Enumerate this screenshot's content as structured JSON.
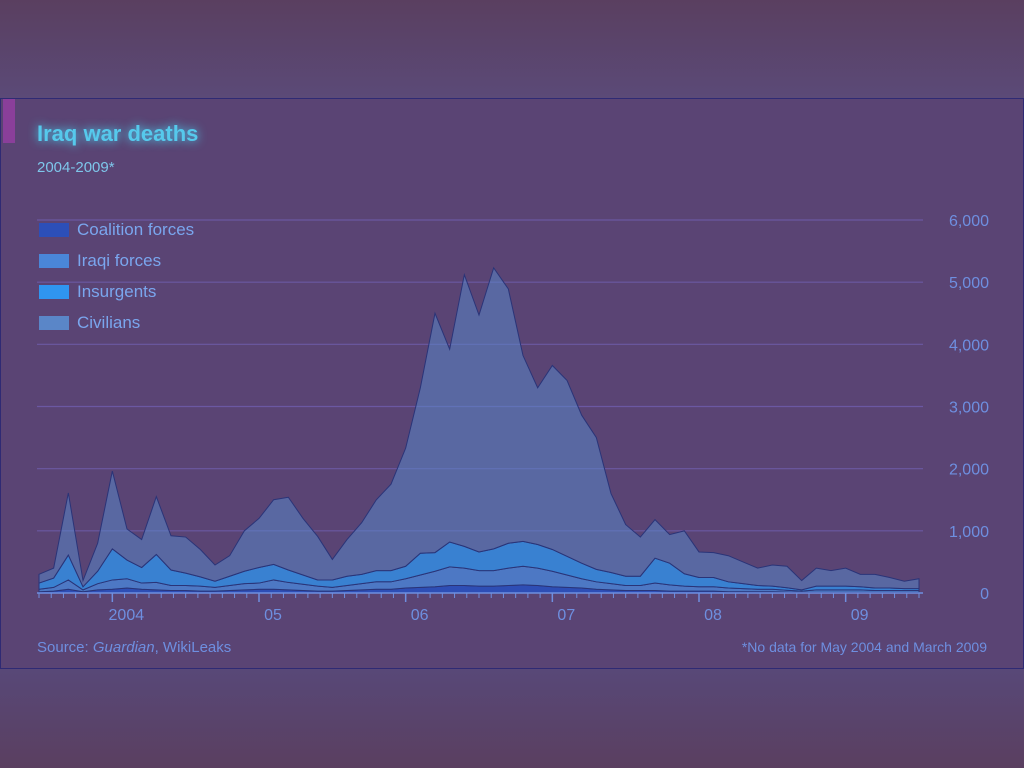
{
  "header": {
    "title": "Iraq war deaths",
    "subtitle": "2004-2009*"
  },
  "footer": {
    "source_prefix": "Source: ",
    "source_italic": "Guardian",
    "source_suffix": ", WikiLeaks",
    "note": "*No data for May 2004 and March 2009"
  },
  "colors": {
    "coalition": "#2c4fb8",
    "iraqi": "#4a86d8",
    "insurgents": "#2f95f0",
    "civilians": "#5a86c8",
    "grid": "#7a6ac8",
    "axis": "#6e8fe0",
    "outline": "#2a3478"
  },
  "chart_data": {
    "type": "area",
    "title": "Iraq war deaths",
    "subtitle": "2004-2009*",
    "stacked": true,
    "y_axis_position": "right",
    "ylim": [
      0,
      6000
    ],
    "y_ticks": [
      "6,000",
      "5,000",
      "4,000",
      "3,000",
      "2,000",
      "1,000",
      "0"
    ],
    "x_tick_labels": [
      "2004",
      "05",
      "06",
      "07",
      "08",
      "09"
    ],
    "x_tick_positions": [
      2004.0,
      2005.0,
      2006.0,
      2007.0,
      2008.0,
      2009.0
    ],
    "grid": true,
    "legend_position": "top-left",
    "x": [
      2003.5,
      2003.6,
      2003.7,
      2003.8,
      2003.9,
      2004.0,
      2004.1,
      2004.2,
      2004.3,
      2004.4,
      2004.5,
      2004.6,
      2004.7,
      2004.8,
      2004.9,
      2005.0,
      2005.1,
      2005.2,
      2005.3,
      2005.4,
      2005.5,
      2005.6,
      2005.7,
      2005.8,
      2005.9,
      2006.0,
      2006.1,
      2006.2,
      2006.3,
      2006.4,
      2006.5,
      2006.6,
      2006.7,
      2006.8,
      2006.9,
      2007.0,
      2007.1,
      2007.2,
      2007.3,
      2007.4,
      2007.5,
      2007.6,
      2007.7,
      2007.8,
      2007.9,
      2008.0,
      2008.1,
      2008.2,
      2008.3,
      2008.4,
      2008.5,
      2008.6,
      2008.7,
      2008.8,
      2008.9,
      2009.0,
      2009.1,
      2009.2,
      2009.3,
      2009.4,
      2009.5
    ],
    "series": [
      {
        "name": "Coalition forces",
        "values": [
          20,
          30,
          60,
          20,
          50,
          60,
          80,
          60,
          50,
          40,
          40,
          30,
          30,
          40,
          50,
          60,
          60,
          50,
          40,
          30,
          30,
          40,
          50,
          60,
          60,
          80,
          90,
          100,
          120,
          120,
          110,
          110,
          120,
          130,
          120,
          100,
          90,
          80,
          60,
          50,
          40,
          40,
          40,
          30,
          30,
          30,
          30,
          20,
          20,
          20,
          20,
          15,
          10,
          10,
          10,
          10,
          10,
          10,
          10,
          10,
          10
        ]
      },
      {
        "name": "Iraqi forces",
        "values": [
          40,
          60,
          150,
          30,
          100,
          150,
          150,
          100,
          120,
          80,
          80,
          80,
          60,
          80,
          100,
          100,
          150,
          120,
          100,
          80,
          60,
          80,
          100,
          120,
          120,
          150,
          200,
          250,
          300,
          280,
          250,
          250,
          280,
          300,
          280,
          250,
          200,
          150,
          120,
          100,
          80,
          80,
          120,
          100,
          80,
          70,
          70,
          60,
          50,
          40,
          40,
          30,
          20,
          40,
          40,
          40,
          40,
          30,
          30,
          30,
          30
        ]
      },
      {
        "name": "Insurgents",
        "values": [
          100,
          150,
          400,
          50,
          200,
          500,
          300,
          250,
          450,
          250,
          200,
          150,
          100,
          150,
          200,
          250,
          250,
          200,
          150,
          100,
          120,
          150,
          150,
          180,
          180,
          200,
          350,
          300,
          400,
          350,
          300,
          350,
          400,
          400,
          380,
          350,
          300,
          250,
          200,
          180,
          150,
          150,
          400,
          350,
          200,
          150,
          150,
          100,
          80,
          60,
          50,
          40,
          20,
          60,
          60,
          60,
          50,
          40,
          40,
          30,
          30
        ]
      },
      {
        "name": "Civilians",
        "values": [
          140,
          160,
          1000,
          100,
          450,
          1250,
          500,
          450,
          930,
          550,
          580,
          440,
          260,
          330,
          650,
          790,
          1040,
          1170,
          910,
          700,
          330,
          590,
          830,
          1140,
          1390,
          1900,
          2660,
          3850,
          3100,
          4370,
          3810,
          4520,
          4090,
          2990,
          2520,
          2960,
          2830,
          2380,
          2120,
          1270,
          830,
          630,
          620,
          460,
          690,
          410,
          400,
          420,
          350,
          280,
          340,
          345,
          150,
          290,
          250,
          290,
          200,
          220,
          170,
          120,
          160
        ]
      }
    ]
  }
}
